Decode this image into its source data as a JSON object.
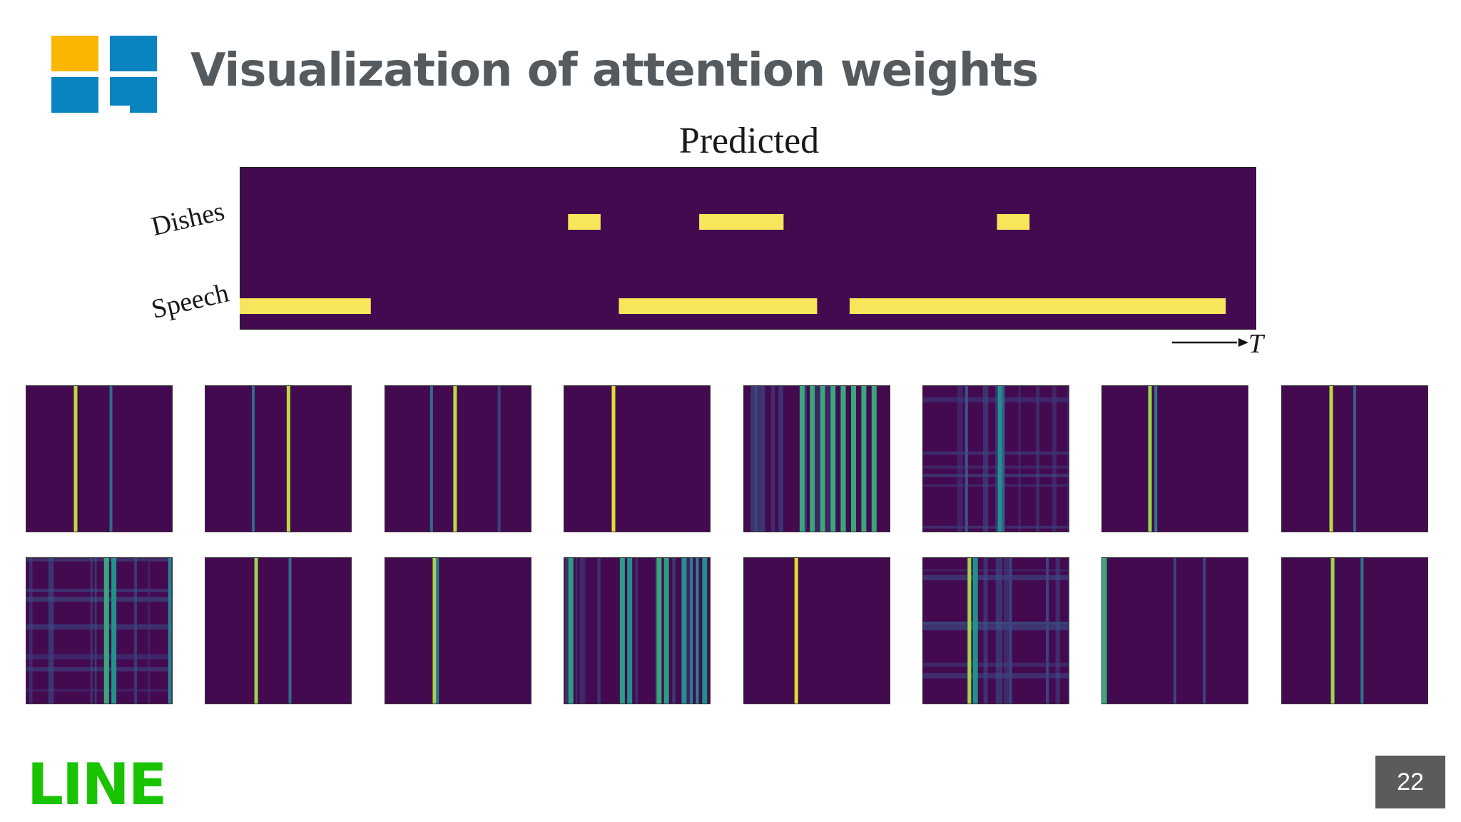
{
  "slide": {
    "title": "Visualization of attention weights",
    "page_number": "22",
    "brand": "LINE",
    "logo_icon": "four-square-windows-logo-icon",
    "colors": {
      "title_text": "#555a5f",
      "logo_yellow": "#f9b700",
      "logo_blue": "#0a83c1",
      "brand_green": "#19c300",
      "page_badge": "#5b5b5b",
      "viridis_dark": "#440a50",
      "viridis_yellow": "#f7e55c"
    }
  },
  "chart_data": [
    {
      "type": "heatmap",
      "title": "Predicted",
      "xlabel": "T",
      "ylabel": "",
      "rows": [
        "Dishes",
        "Speech"
      ],
      "x_range": [
        0,
        100
      ],
      "active_segments": {
        "Dishes": [
          [
            32.3,
            35.5
          ],
          [
            45.2,
            53.5
          ],
          [
            74.5,
            77.7
          ]
        ],
        "Speech": [
          [
            0,
            12.9
          ],
          [
            37.3,
            56.8
          ],
          [
            60.0,
            97.0
          ]
        ]
      },
      "colormap": "viridis",
      "grid": false,
      "legend": "none"
    },
    {
      "type": "heatmap",
      "title": "",
      "layout": "grid 2 rows x 8 columns",
      "colormap": "viridis",
      "x_range": [
        0,
        1
      ],
      "panels": [
        {
          "stripes": [
            [
              0.34,
              0.9
            ],
            [
              0.58,
              0.35
            ]
          ]
        },
        {
          "stripes": [
            [
              0.33,
              0.35
            ],
            [
              0.57,
              0.9
            ]
          ]
        },
        {
          "stripes": [
            [
              0.32,
              0.35
            ],
            [
              0.48,
              0.9
            ],
            [
              0.78,
              0.2
            ]
          ]
        },
        {
          "stripes": [
            [
              0.34,
              0.95
            ]
          ]
        },
        {
          "stripes": [
            [
              0.4,
              0.6
            ],
            [
              0.4,
              0.6
            ],
            [
              0.4,
              0.6
            ],
            [
              0.4,
              0.6
            ],
            [
              0.4,
              0.6
            ],
            [
              0.4,
              0.6
            ],
            [
              0.4,
              0.6
            ],
            [
              0.4,
              0.6
            ]
          ],
          "texture": "dense"
        },
        {
          "stripes": [
            [
              0.53,
              0.5
            ],
            [
              0.55,
              0.3
            ],
            [
              0.3,
              0.25
            ]
          ],
          "texture": "noisy"
        },
        {
          "stripes": [
            [
              0.33,
              0.85
            ],
            [
              0.37,
              0.4
            ]
          ]
        },
        {
          "stripes": [
            [
              0.34,
              0.9
            ],
            [
              0.5,
              0.3
            ]
          ]
        },
        {
          "stripes": [
            [
              0.55,
              0.6
            ],
            [
              0.6,
              0.5
            ],
            [
              0.98,
              0.45
            ]
          ],
          "texture": "noisy"
        },
        {
          "stripes": [
            [
              0.35,
              0.85
            ],
            [
              0.58,
              0.35
            ]
          ]
        },
        {
          "stripes": [
            [
              0.34,
              0.85
            ],
            [
              0.36,
              0.4
            ]
          ]
        },
        {
          "stripes": [
            [
              0.05,
              0.55
            ],
            [
              0.4,
              0.55
            ],
            [
              0.45,
              0.5
            ],
            [
              0.65,
              0.6
            ],
            [
              0.7,
              0.55
            ],
            [
              0.82,
              0.5
            ],
            [
              0.87,
              0.45
            ],
            [
              0.91,
              0.45
            ],
            [
              0.96,
              0.5
            ]
          ],
          "texture": "dense"
        },
        {
          "stripes": [
            [
              0.36,
              0.95
            ]
          ]
        },
        {
          "stripes": [
            [
              0.32,
              0.85
            ],
            [
              0.36,
              0.5
            ],
            [
              0.6,
              0.2
            ],
            [
              0.85,
              0.2
            ]
          ],
          "texture": "noisy"
        },
        {
          "stripes": [
            [
              0.02,
              0.6
            ],
            [
              0.5,
              0.2
            ],
            [
              0.7,
              0.2
            ]
          ]
        },
        {
          "stripes": [
            [
              0.35,
              0.85
            ],
            [
              0.55,
              0.4
            ]
          ]
        }
      ]
    }
  ]
}
